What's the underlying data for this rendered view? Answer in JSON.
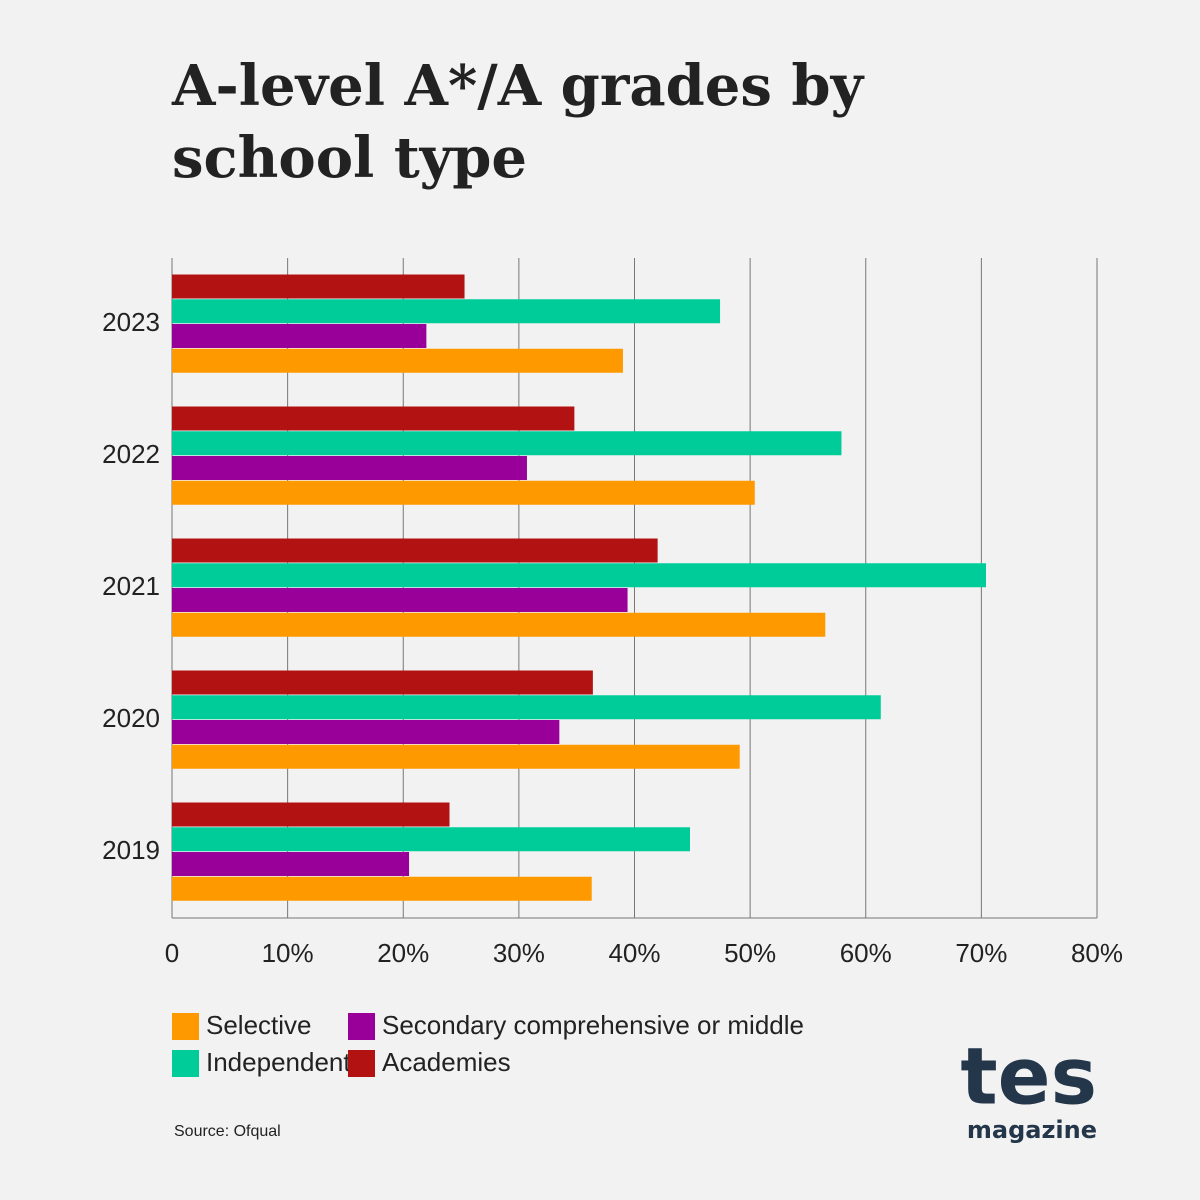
{
  "chart_data": {
    "type": "bar",
    "orientation": "horizontal",
    "title": "A-level A*/A grades by school type",
    "categories": [
      "2023",
      "2022",
      "2021",
      "2020",
      "2019"
    ],
    "series": [
      {
        "name": "Selective",
        "color": "#ff9900",
        "values": [
          39.0,
          50.4,
          56.5,
          49.1,
          36.3
        ]
      },
      {
        "name": "Secondary comprehensive or middle",
        "color": "#990099",
        "values": [
          22.0,
          30.7,
          39.4,
          33.5,
          20.5
        ]
      },
      {
        "name": "Independent",
        "color": "#00cc99",
        "values": [
          47.4,
          57.9,
          70.4,
          61.3,
          44.8
        ]
      },
      {
        "name": "Academies",
        "color": "#b31212",
        "values": [
          25.3,
          34.8,
          42.0,
          36.4,
          24.0
        ]
      }
    ],
    "xlim": [
      0,
      80
    ],
    "xticks": [
      0,
      {
        "value": 10,
        "label": "10%"
      },
      {
        "value": 20,
        "label": "20%"
      },
      {
        "value": 30,
        "label": "30%"
      },
      {
        "value": 40,
        "label": "40%"
      },
      {
        "value": 50,
        "label": "50%"
      },
      {
        "value": 60,
        "label": "60%"
      },
      {
        "value": 70,
        "label": "70%"
      },
      {
        "value": 80,
        "label": "80%"
      }
    ],
    "grid": true,
    "source": "Source: Ofqual"
  },
  "logo": {
    "name": "tes",
    "tagline": "magazine"
  }
}
